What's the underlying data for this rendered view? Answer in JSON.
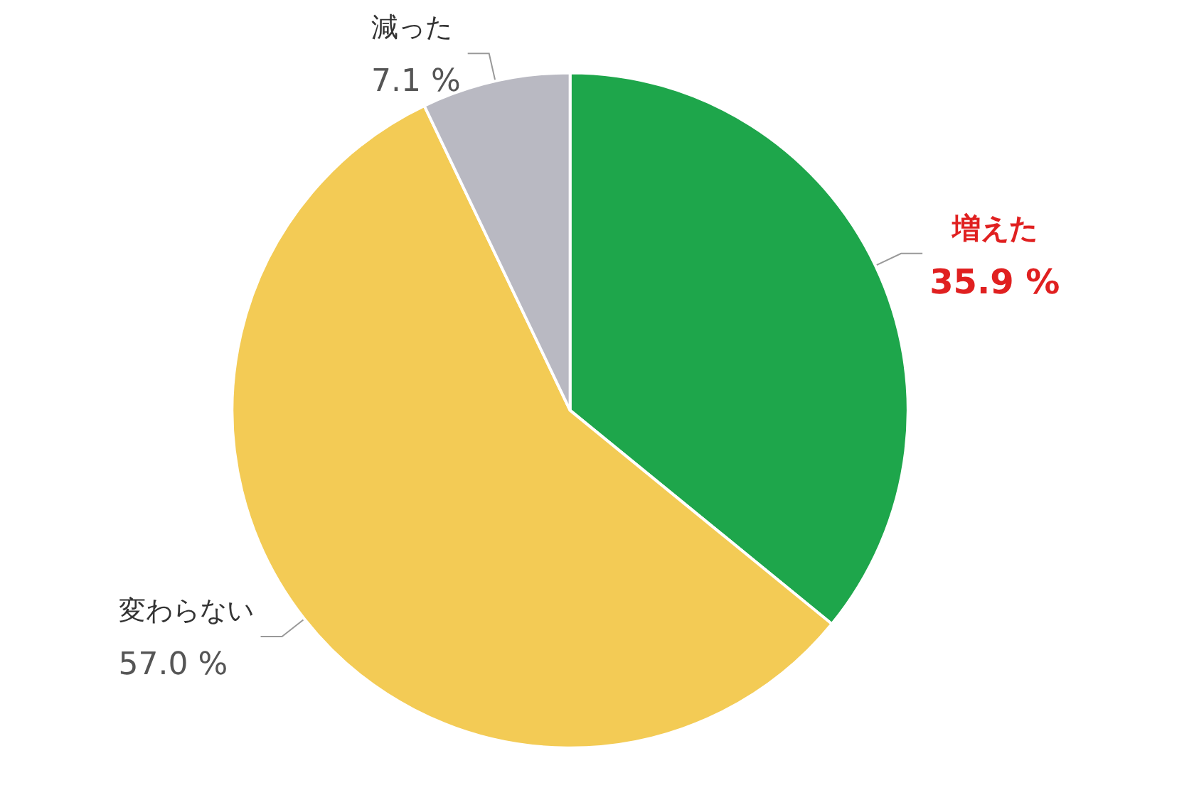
{
  "chart_data": {
    "type": "pie",
    "categories": [
      "増えた",
      "変わらない",
      "減った"
    ],
    "values": [
      35.9,
      57.0,
      7.1
    ],
    "colors": [
      "#1ea64b",
      "#f3cb55",
      "#b9b9c2"
    ],
    "value_labels": [
      "35.9 %",
      "57.0 %",
      "7.1 %"
    ],
    "legend": false
  }
}
